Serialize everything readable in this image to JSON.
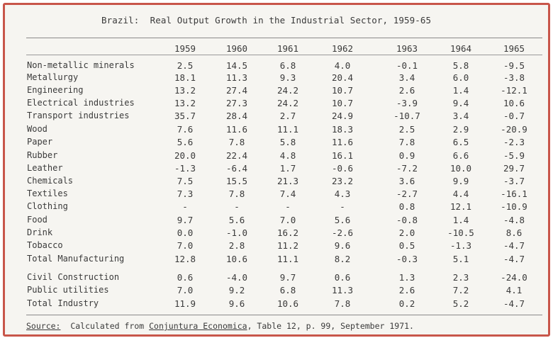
{
  "title": "Brazil:  Real Output Growth in the Industrial Sector, 1959-65",
  "years": [
    "1959",
    "1960",
    "1961",
    "1962",
    "1963",
    "1964",
    "1965"
  ],
  "rows": [
    {
      "label": "Non-metallic minerals",
      "values": [
        "2.5",
        "14.5",
        "6.8",
        "4.0",
        "-0.1",
        "5.8",
        "-9.5"
      ]
    },
    {
      "label": "Metallurgy",
      "values": [
        "18.1",
        "11.3",
        "9.3",
        "20.4",
        "3.4",
        "6.0",
        "-3.8"
      ]
    },
    {
      "label": "Engineering",
      "values": [
        "13.2",
        "27.4",
        "24.2",
        "10.7",
        "2.6",
        "1.4",
        "-12.1"
      ]
    },
    {
      "label": "Electrical industries",
      "values": [
        "13.2",
        "27.3",
        "24.2",
        "10.7",
        "-3.9",
        "9.4",
        "10.6"
      ]
    },
    {
      "label": "Transport industries",
      "values": [
        "35.7",
        "28.4",
        "2.7",
        "24.9",
        "-10.7",
        "3.4",
        "-0.7"
      ]
    },
    {
      "label": "Wood",
      "values": [
        "7.6",
        "11.6",
        "11.1",
        "18.3",
        "2.5",
        "2.9",
        "-20.9"
      ]
    },
    {
      "label": "Paper",
      "values": [
        "5.6",
        "7.8",
        "5.8",
        "11.6",
        "7.8",
        "6.5",
        "-2.3"
      ]
    },
    {
      "label": "Rubber",
      "values": [
        "20.0",
        "22.4",
        "4.8",
        "16.1",
        "0.9",
        "6.6",
        "-5.9"
      ]
    },
    {
      "label": "Leather",
      "values": [
        "-1.3",
        "-6.4",
        "1.7",
        "-0.6",
        "-7.2",
        "10.0",
        "29.7"
      ]
    },
    {
      "label": "Chemicals",
      "values": [
        "7.5",
        "15.5",
        "21.3",
        "23.2",
        "3.6",
        "9.9",
        "-3.7"
      ]
    },
    {
      "label": "Textiles",
      "values": [
        "7.3",
        "7.8",
        "7.4",
        "4.3",
        "-2.7",
        "4.4",
        "-16.1"
      ]
    },
    {
      "label": "Clothing",
      "values": [
        "-",
        "-",
        "-",
        "-",
        "0.8",
        "12.1",
        "-10.9"
      ]
    },
    {
      "label": "Food",
      "values": [
        "9.7",
        "5.6",
        "7.0",
        "5.6",
        "-0.8",
        "1.4",
        "-4.8"
      ]
    },
    {
      "label": "Drink",
      "values": [
        "0.0",
        "-1.0",
        "16.2",
        "-2.6",
        "2.0",
        "-10.5",
        "8.6"
      ]
    },
    {
      "label": "Tobacco",
      "values": [
        "7.0",
        "2.8",
        "11.2",
        "9.6",
        "0.5",
        "-1.3",
        "-4.7"
      ]
    },
    {
      "label": "Total Manufacturing",
      "values": [
        "12.8",
        "10.6",
        "11.1",
        "8.2",
        "-0.3",
        "5.1",
        "-4.7"
      ]
    },
    {
      "label": "Civil Construction",
      "values": [
        "0.6",
        "-4.0",
        "9.7",
        "0.6",
        "1.3",
        "2.3",
        "-24.0"
      ]
    },
    {
      "label": "Public utilities",
      "values": [
        "7.0",
        "9.2",
        "6.8",
        "11.3",
        "2.6",
        "7.2",
        "4.1"
      ]
    },
    {
      "label": "Total Industry",
      "values": [
        "11.9",
        "9.6",
        "10.6",
        "7.8",
        "0.2",
        "5.2",
        "-4.7"
      ]
    }
  ],
  "source": {
    "label": "Source:",
    "prefix": "  Calculated from ",
    "publication": "Conjuntura Economica",
    "suffix": ", Table 12, p. 99, September 1971."
  }
}
